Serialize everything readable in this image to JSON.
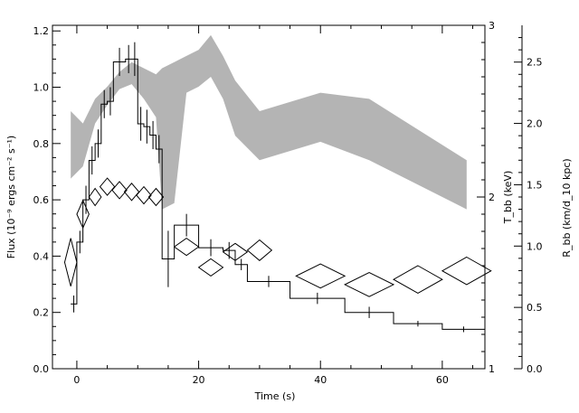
{
  "chart_data": {
    "type": "line",
    "xlabel": "Time (s)",
    "ylabel_left": "Flux (10⁻⁹ ergs cm⁻² s⁻¹)",
    "ylabel_right_inner": "T_bb (keV)",
    "ylabel_right_outer": "R_bb (km/d_10 kpc)",
    "xlim": [
      -4,
      67
    ],
    "ylim_left": [
      0,
      1.22
    ],
    "ylim_inner": [
      1,
      3
    ],
    "ylim_outer": [
      0,
      2.8
    ],
    "x_ticks": [
      "0",
      "20",
      "40",
      "60"
    ],
    "y_ticks_left": [
      "0.0",
      "0.2",
      "0.4",
      "0.6",
      "0.8",
      "1.0",
      "1.2"
    ],
    "y_ticks_inner": [
      "1",
      "2",
      "3"
    ],
    "y_ticks_outer": [
      "0.0",
      "0.5",
      "1.0",
      "1.5",
      "2.0",
      "2.5"
    ],
    "flux_histogram": {
      "name": "Flux",
      "bins": [
        {
          "x0": -1,
          "x1": 0,
          "y": 0.23,
          "err": 0.03
        },
        {
          "x0": 0,
          "x1": 1,
          "y": 0.45,
          "err": 0.04
        },
        {
          "x0": 1,
          "x1": 2,
          "y": 0.6,
          "err": 0.05
        },
        {
          "x0": 2,
          "x1": 3,
          "y": 0.74,
          "err": 0.05
        },
        {
          "x0": 3,
          "x1": 4,
          "y": 0.8,
          "err": 0.05
        },
        {
          "x0": 4,
          "x1": 5,
          "y": 0.94,
          "err": 0.05
        },
        {
          "x0": 5,
          "x1": 6,
          "y": 0.95,
          "err": 0.05
        },
        {
          "x0": 6,
          "x1": 8,
          "y": 1.09,
          "err": 0.05
        },
        {
          "x0": 8,
          "x1": 9,
          "y": 1.1,
          "err": 0.05
        },
        {
          "x0": 9,
          "x1": 10,
          "y": 1.1,
          "err": 0.06
        },
        {
          "x0": 10,
          "x1": 11,
          "y": 0.87,
          "err": 0.06
        },
        {
          "x0": 11,
          "x1": 12,
          "y": 0.86,
          "err": 0.06
        },
        {
          "x0": 12,
          "x1": 13,
          "y": 0.83,
          "err": 0.05
        },
        {
          "x0": 13,
          "x1": 14,
          "y": 0.78,
          "err": 0.05
        },
        {
          "x0": 14,
          "x1": 16,
          "y": 0.39,
          "err": 0.1
        },
        {
          "x0": 16,
          "x1": 20,
          "y": 0.51,
          "err": 0.04
        },
        {
          "x0": 20,
          "x1": 24,
          "y": 0.43,
          "err": 0.03
        },
        {
          "x0": 24,
          "x1": 26,
          "y": 0.42,
          "err": 0.03
        },
        {
          "x0": 26,
          "x1": 28,
          "y": 0.37,
          "err": 0.02
        },
        {
          "x0": 28,
          "x1": 35,
          "y": 0.31,
          "err": 0.02
        },
        {
          "x0": 35,
          "x1": 44,
          "y": 0.25,
          "err": 0.02
        },
        {
          "x0": 44,
          "x1": 52,
          "y": 0.2,
          "err": 0.02
        },
        {
          "x0": 52,
          "x1": 60,
          "y": 0.16,
          "err": 0.01
        },
        {
          "x0": 60,
          "x1": 67,
          "y": 0.14,
          "err": 0.01
        }
      ]
    },
    "radius_band": {
      "name": "R_bb",
      "x": [
        -1,
        1,
        3,
        5,
        7,
        9,
        11,
        13,
        14,
        16,
        18,
        20,
        22,
        24,
        26,
        30,
        40,
        48,
        56,
        64
      ],
      "lower": [
        1.55,
        1.65,
        2.0,
        2.15,
        2.28,
        2.32,
        2.2,
        2.05,
        1.3,
        1.35,
        2.25,
        2.3,
        2.38,
        2.2,
        1.9,
        1.7,
        1.85,
        1.7,
        1.5,
        1.3
      ],
      "upper": [
        2.1,
        2.0,
        2.2,
        2.3,
        2.42,
        2.5,
        2.45,
        2.4,
        2.45,
        2.5,
        2.55,
        2.6,
        2.72,
        2.55,
        2.35,
        2.1,
        2.25,
        2.2,
        1.95,
        1.7
      ]
    },
    "temperature_points": {
      "name": "T_bb",
      "points": [
        {
          "x": -1,
          "y": 1.62,
          "dx": 1,
          "dy": 0.14
        },
        {
          "x": 1,
          "y": 1.9,
          "dx": 1,
          "dy": 0.08
        },
        {
          "x": 3,
          "y": 2.0,
          "dx": 1,
          "dy": 0.05
        },
        {
          "x": 5,
          "y": 2.06,
          "dx": 1.2,
          "dy": 0.05
        },
        {
          "x": 7,
          "y": 2.04,
          "dx": 1.2,
          "dy": 0.05
        },
        {
          "x": 9,
          "y": 2.03,
          "dx": 1.2,
          "dy": 0.05
        },
        {
          "x": 11,
          "y": 2.01,
          "dx": 1.2,
          "dy": 0.05
        },
        {
          "x": 13,
          "y": 2.0,
          "dx": 1.2,
          "dy": 0.05
        },
        {
          "x": 18,
          "y": 1.71,
          "dx": 2,
          "dy": 0.05
        },
        {
          "x": 22,
          "y": 1.59,
          "dx": 2,
          "dy": 0.05
        },
        {
          "x": 26,
          "y": 1.68,
          "dx": 2,
          "dy": 0.05
        },
        {
          "x": 30,
          "y": 1.69,
          "dx": 2,
          "dy": 0.06
        },
        {
          "x": 40,
          "y": 1.54,
          "dx": 4,
          "dy": 0.07
        },
        {
          "x": 48,
          "y": 1.49,
          "dx": 4,
          "dy": 0.07
        },
        {
          "x": 56,
          "y": 1.52,
          "dx": 4,
          "dy": 0.08
        },
        {
          "x": 64,
          "y": 1.57,
          "dx": 4,
          "dy": 0.08
        }
      ]
    },
    "colors": {
      "band": "#b4b4b4",
      "line": "#000000"
    }
  }
}
